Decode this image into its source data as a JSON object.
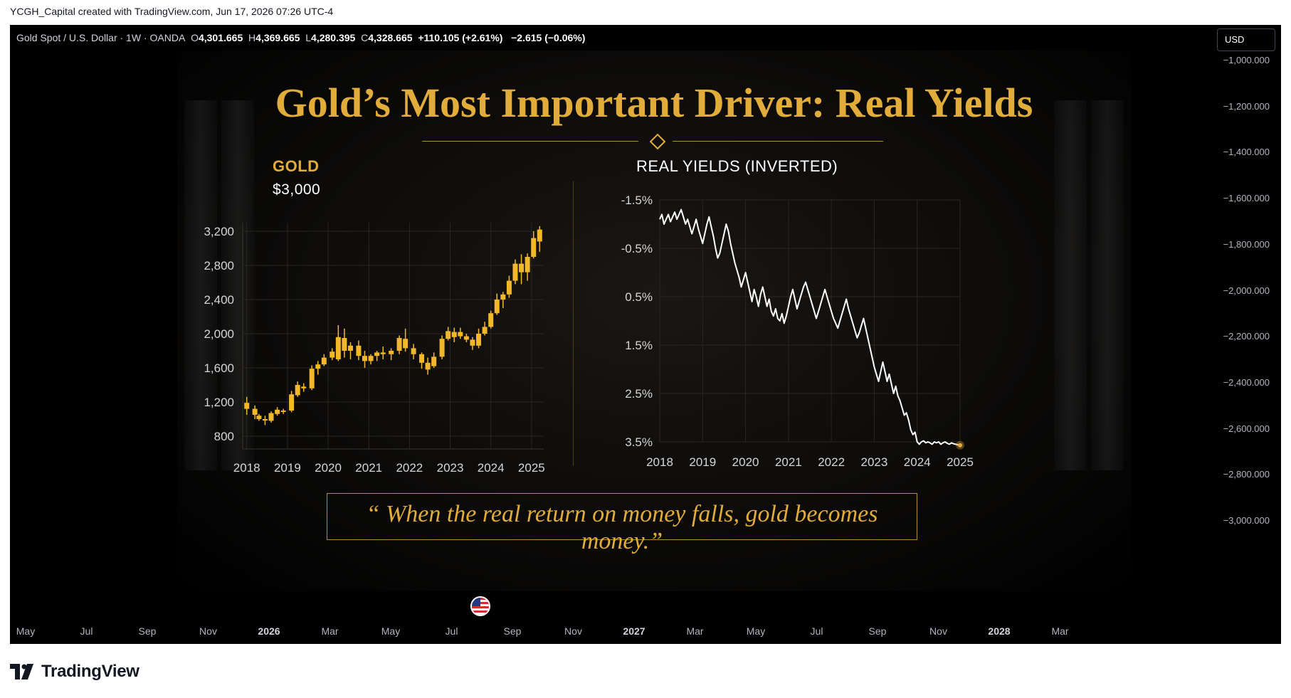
{
  "header": {
    "attribution": "YCGH_Capital created with TradingView.com, Jun 17, 2026 07:26 UTC-4"
  },
  "symbol_bar": {
    "name": "Gold Spot / U.S. Dollar · 1W · OANDA",
    "o_label": "O",
    "o_value": "4,301.665",
    "h_label": "H",
    "h_value": "4,369.665",
    "l_label": "L",
    "l_value": "4,280.395",
    "c_label": "C",
    "c_value": "4,328.665",
    "change": "+110.105 (+2.61%)",
    "change2": "−2.615 (−0.06%)"
  },
  "currency_button": "USD",
  "price_axis": [
    "−1,000.000",
    "−1,200.000",
    "−1,400.000",
    "−1,600.000",
    "−1,800.000",
    "−2,000.000",
    "−2,200.000",
    "−2,400.000",
    "−2,600.000",
    "−2,800.000",
    "−3,000.000"
  ],
  "time_axis": [
    {
      "label": "May",
      "major": false
    },
    {
      "label": "Jul",
      "major": false
    },
    {
      "label": "Sep",
      "major": false
    },
    {
      "label": "Nov",
      "major": false
    },
    {
      "label": "2026",
      "major": true
    },
    {
      "label": "Mar",
      "major": false
    },
    {
      "label": "May",
      "major": false
    },
    {
      "label": "Jul",
      "major": false
    },
    {
      "label": "Sep",
      "major": false
    },
    {
      "label": "Nov",
      "major": false
    },
    {
      "label": "2027",
      "major": true
    },
    {
      "label": "Mar",
      "major": false
    },
    {
      "label": "May",
      "major": false
    },
    {
      "label": "Jul",
      "major": false
    },
    {
      "label": "Sep",
      "major": false
    },
    {
      "label": "Nov",
      "major": false
    },
    {
      "label": "2028",
      "major": true
    },
    {
      "label": "Mar",
      "major": false
    }
  ],
  "infographic": {
    "title": "Gold’s Most Important Driver: Real Yields",
    "quote": "“ When the real return on money falls, gold becomes money.”"
  },
  "colors": {
    "gold": "#e2ac3b",
    "candle": "#f2b82a",
    "line": "#ffffff",
    "background": "#000000"
  },
  "branding": {
    "logo_text": "TradingView",
    "icon": "tradingview-logo-icon",
    "event_icon": "us-flag-icon"
  },
  "chart_data": [
    {
      "type": "candlestick",
      "title": "GOLD",
      "subtitle": "$3,000",
      "x_ticks": [
        "2018",
        "2019",
        "2020",
        "2021",
        "2022",
        "2023",
        "2024",
        "2025"
      ],
      "y_ticks": [
        "3,200",
        "2,800",
        "2,400",
        "2,000",
        "1,600",
        "1,200",
        "800"
      ],
      "y_tick_values": [
        3200,
        2800,
        2400,
        2000,
        1600,
        1200,
        800
      ],
      "ylim": [
        650,
        3300
      ],
      "xlim": [
        2017.9,
        2025.3
      ],
      "grid": true,
      "candles": [
        {
          "t": 2018.0,
          "o": 1120,
          "h": 1260,
          "l": 1050,
          "c": 1190
        },
        {
          "t": 2018.2,
          "o": 1120,
          "h": 1160,
          "l": 1000,
          "c": 1050
        },
        {
          "t": 2018.3,
          "o": 1040,
          "h": 1060,
          "l": 980,
          "c": 1000
        },
        {
          "t": 2018.45,
          "o": 1000,
          "h": 1040,
          "l": 930,
          "c": 990
        },
        {
          "t": 2018.6,
          "o": 980,
          "h": 1090,
          "l": 960,
          "c": 1070
        },
        {
          "t": 2018.75,
          "o": 1060,
          "h": 1140,
          "l": 1040,
          "c": 1110
        },
        {
          "t": 2018.9,
          "o": 1090,
          "h": 1120,
          "l": 1060,
          "c": 1100
        },
        {
          "t": 2019.1,
          "o": 1100,
          "h": 1330,
          "l": 1080,
          "c": 1290
        },
        {
          "t": 2019.25,
          "o": 1280,
          "h": 1440,
          "l": 1260,
          "c": 1400
        },
        {
          "t": 2019.4,
          "o": 1380,
          "h": 1420,
          "l": 1320,
          "c": 1360
        },
        {
          "t": 2019.6,
          "o": 1360,
          "h": 1630,
          "l": 1340,
          "c": 1590
        },
        {
          "t": 2019.75,
          "o": 1590,
          "h": 1680,
          "l": 1520,
          "c": 1640
        },
        {
          "t": 2019.9,
          "o": 1640,
          "h": 1760,
          "l": 1620,
          "c": 1720
        },
        {
          "t": 2020.1,
          "o": 1720,
          "h": 1830,
          "l": 1690,
          "c": 1790
        },
        {
          "t": 2020.25,
          "o": 1700,
          "h": 2100,
          "l": 1680,
          "c": 1960
        },
        {
          "t": 2020.4,
          "o": 1950,
          "h": 2060,
          "l": 1720,
          "c": 1800
        },
        {
          "t": 2020.55,
          "o": 1800,
          "h": 1900,
          "l": 1700,
          "c": 1860
        },
        {
          "t": 2020.75,
          "o": 1860,
          "h": 1920,
          "l": 1690,
          "c": 1740
        },
        {
          "t": 2020.9,
          "o": 1740,
          "h": 1800,
          "l": 1600,
          "c": 1680
        },
        {
          "t": 2021.05,
          "o": 1680,
          "h": 1760,
          "l": 1640,
          "c": 1740
        },
        {
          "t": 2021.2,
          "o": 1740,
          "h": 1800,
          "l": 1680,
          "c": 1780
        },
        {
          "t": 2021.35,
          "o": 1780,
          "h": 1850,
          "l": 1700,
          "c": 1760
        },
        {
          "t": 2021.55,
          "o": 1760,
          "h": 1830,
          "l": 1690,
          "c": 1800
        },
        {
          "t": 2021.75,
          "o": 1800,
          "h": 1980,
          "l": 1760,
          "c": 1950
        },
        {
          "t": 2021.9,
          "o": 1940,
          "h": 2060,
          "l": 1790,
          "c": 1830
        },
        {
          "t": 2022.1,
          "o": 1830,
          "h": 1880,
          "l": 1700,
          "c": 1760
        },
        {
          "t": 2022.3,
          "o": 1760,
          "h": 1780,
          "l": 1590,
          "c": 1660
        },
        {
          "t": 2022.45,
          "o": 1660,
          "h": 1720,
          "l": 1520,
          "c": 1580
        },
        {
          "t": 2022.6,
          "o": 1620,
          "h": 1780,
          "l": 1600,
          "c": 1730
        },
        {
          "t": 2022.8,
          "o": 1730,
          "h": 1980,
          "l": 1700,
          "c": 1940
        },
        {
          "t": 2022.95,
          "o": 1940,
          "h": 2080,
          "l": 1920,
          "c": 2030
        },
        {
          "t": 2023.1,
          "o": 1960,
          "h": 2070,
          "l": 1900,
          "c": 2020
        },
        {
          "t": 2023.25,
          "o": 2020,
          "h": 2070,
          "l": 1940,
          "c": 1970
        },
        {
          "t": 2023.4,
          "o": 1970,
          "h": 2000,
          "l": 1900,
          "c": 1930
        },
        {
          "t": 2023.55,
          "o": 1930,
          "h": 1960,
          "l": 1810,
          "c": 1860
        },
        {
          "t": 2023.7,
          "o": 1860,
          "h": 2060,
          "l": 1830,
          "c": 2000
        },
        {
          "t": 2023.85,
          "o": 2000,
          "h": 2140,
          "l": 1980,
          "c": 2080
        },
        {
          "t": 2024.0,
          "o": 2080,
          "h": 2270,
          "l": 2060,
          "c": 2240
        },
        {
          "t": 2024.15,
          "o": 2240,
          "h": 2470,
          "l": 2220,
          "c": 2400
        },
        {
          "t": 2024.3,
          "o": 2400,
          "h": 2490,
          "l": 2300,
          "c": 2460
        },
        {
          "t": 2024.45,
          "o": 2460,
          "h": 2680,
          "l": 2420,
          "c": 2620
        },
        {
          "t": 2024.6,
          "o": 2620,
          "h": 2870,
          "l": 2580,
          "c": 2820
        },
        {
          "t": 2024.75,
          "o": 2820,
          "h": 2930,
          "l": 2580,
          "c": 2720
        },
        {
          "t": 2024.9,
          "o": 2720,
          "h": 2940,
          "l": 2620,
          "c": 2900
        },
        {
          "t": 2025.05,
          "o": 2900,
          "h": 3200,
          "l": 2880,
          "c": 3120
        },
        {
          "t": 2025.2,
          "o": 3080,
          "h": 3260,
          "l": 2960,
          "c": 3220
        }
      ]
    },
    {
      "type": "line",
      "title": "REAL YIELDS (INVERTED)",
      "x_ticks": [
        "2018",
        "2019",
        "2020",
        "2021",
        "2022",
        "2023",
        "2024",
        "2025"
      ],
      "y_ticks": [
        "-1.5%",
        "-0.5%",
        "0.5%",
        "1.5%",
        "2.5%",
        "3.5%"
      ],
      "y_tick_values": [
        -1.5,
        -0.5,
        0.5,
        1.5,
        2.5,
        3.5
      ],
      "ylim": [
        -1.5,
        3.5
      ],
      "y_inverted_axis": true,
      "xlim": [
        2018.0,
        2025.0
      ],
      "grid": true,
      "series": [
        {
          "x": [
            2018.0,
            2018.05,
            2018.1,
            2018.15,
            2018.2,
            2018.25,
            2018.3,
            2018.35,
            2018.4,
            2018.45,
            2018.5,
            2018.55,
            2018.6,
            2018.65,
            2018.7,
            2018.75,
            2018.8,
            2018.85,
            2018.9,
            2018.95,
            2019.0,
            2019.05,
            2019.1,
            2019.15,
            2019.2,
            2019.25,
            2019.3,
            2019.35,
            2019.4,
            2019.45,
            2019.5,
            2019.55,
            2019.6,
            2019.65,
            2019.7,
            2019.75,
            2019.8,
            2019.85,
            2019.9,
            2019.95,
            2020.0,
            2020.05,
            2020.1,
            2020.15,
            2020.2,
            2020.25,
            2020.3,
            2020.35,
            2020.4,
            2020.45,
            2020.5,
            2020.55,
            2020.6,
            2020.65,
            2020.7,
            2020.75,
            2020.8,
            2020.85,
            2020.9,
            2020.95,
            2021.0,
            2021.05,
            2021.1,
            2021.15,
            2021.2,
            2021.25,
            2021.3,
            2021.35,
            2021.4,
            2021.45,
            2021.5,
            2021.55,
            2021.6,
            2021.65,
            2021.7,
            2021.75,
            2021.8,
            2021.85,
            2021.9,
            2021.95,
            2022.0,
            2022.05,
            2022.1,
            2022.15,
            2022.2,
            2022.25,
            2022.3,
            2022.35,
            2022.4,
            2022.45,
            2022.5,
            2022.55,
            2022.6,
            2022.65,
            2022.7,
            2022.75,
            2022.8,
            2022.85,
            2022.9,
            2022.95,
            2023.0,
            2023.05,
            2023.1,
            2023.15,
            2023.2,
            2023.25,
            2023.3,
            2023.35,
            2023.4,
            2023.45,
            2023.5,
            2023.55,
            2023.6,
            2023.65,
            2023.7,
            2023.75,
            2023.8,
            2023.85,
            2023.9,
            2023.95,
            2024.0,
            2024.05,
            2024.1,
            2024.15,
            2024.2,
            2024.25,
            2024.3,
            2024.35,
            2024.4,
            2024.45,
            2024.5,
            2024.55,
            2024.6,
            2024.65,
            2024.7,
            2024.75,
            2024.8,
            2024.85,
            2024.9,
            2024.95,
            2025.0
          ],
          "y": [
            -1.1,
            -1.2,
            -1.0,
            -1.1,
            -1.2,
            -1.05,
            -1.15,
            -1.25,
            -1.1,
            -1.2,
            -1.3,
            -1.15,
            -1.0,
            -1.1,
            -0.95,
            -0.8,
            -0.95,
            -1.1,
            -0.9,
            -0.75,
            -0.6,
            -0.8,
            -1.0,
            -1.15,
            -0.95,
            -0.75,
            -0.5,
            -0.3,
            -0.4,
            -0.6,
            -0.8,
            -1.0,
            -0.85,
            -0.6,
            -0.4,
            -0.2,
            -0.05,
            0.1,
            0.3,
            0.15,
            0.0,
            0.2,
            0.4,
            0.6,
            0.35,
            0.5,
            0.7,
            0.45,
            0.3,
            0.5,
            0.7,
            0.55,
            0.8,
            0.9,
            0.75,
            0.95,
            1.0,
            0.85,
            1.05,
            0.9,
            0.7,
            0.5,
            0.35,
            0.55,
            0.75,
            0.6,
            0.45,
            0.3,
            0.2,
            0.35,
            0.5,
            0.65,
            0.8,
            0.95,
            0.8,
            0.65,
            0.5,
            0.35,
            0.5,
            0.65,
            0.8,
            0.95,
            1.05,
            1.15,
            1.0,
            0.85,
            0.7,
            0.55,
            0.75,
            0.9,
            1.05,
            1.2,
            1.35,
            1.25,
            1.1,
            0.95,
            1.15,
            1.35,
            1.55,
            1.75,
            1.95,
            2.1,
            2.25,
            2.05,
            1.85,
            2.05,
            2.25,
            2.1,
            2.3,
            2.5,
            2.35,
            2.55,
            2.65,
            2.8,
            2.95,
            2.9,
            3.05,
            3.25,
            3.35,
            3.3,
            3.5,
            3.55,
            3.5,
            3.48,
            3.52,
            3.5,
            3.52,
            3.55,
            3.5,
            3.52,
            3.5,
            3.55,
            3.52,
            3.5,
            3.53,
            3.55,
            3.52,
            3.54,
            3.55,
            3.56,
            3.57
          ]
        }
      ]
    }
  ]
}
